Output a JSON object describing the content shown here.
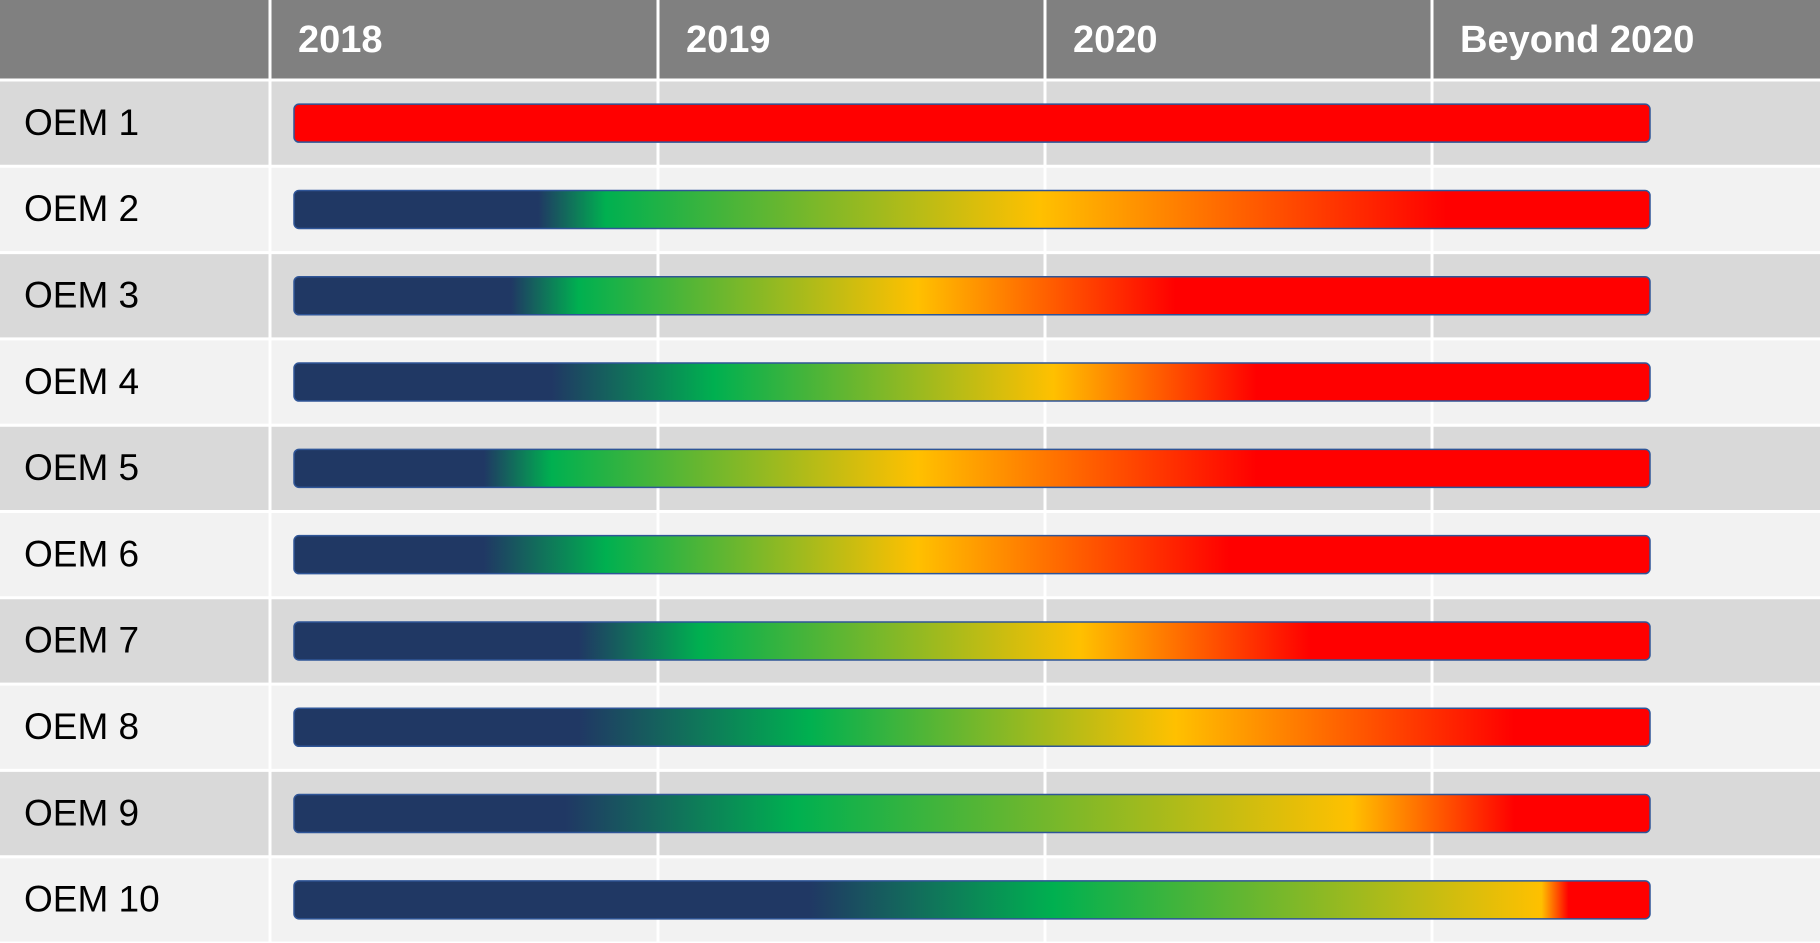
{
  "header": {
    "columns": [
      "2018",
      "2019",
      "2020",
      "Beyond 2020"
    ]
  },
  "rows": [
    "OEM 1",
    "OEM 2",
    "OEM 3",
    "OEM 4",
    "OEM 5",
    "OEM 6",
    "OEM 7",
    "OEM 8",
    "OEM 9",
    "OEM 10"
  ]
}
